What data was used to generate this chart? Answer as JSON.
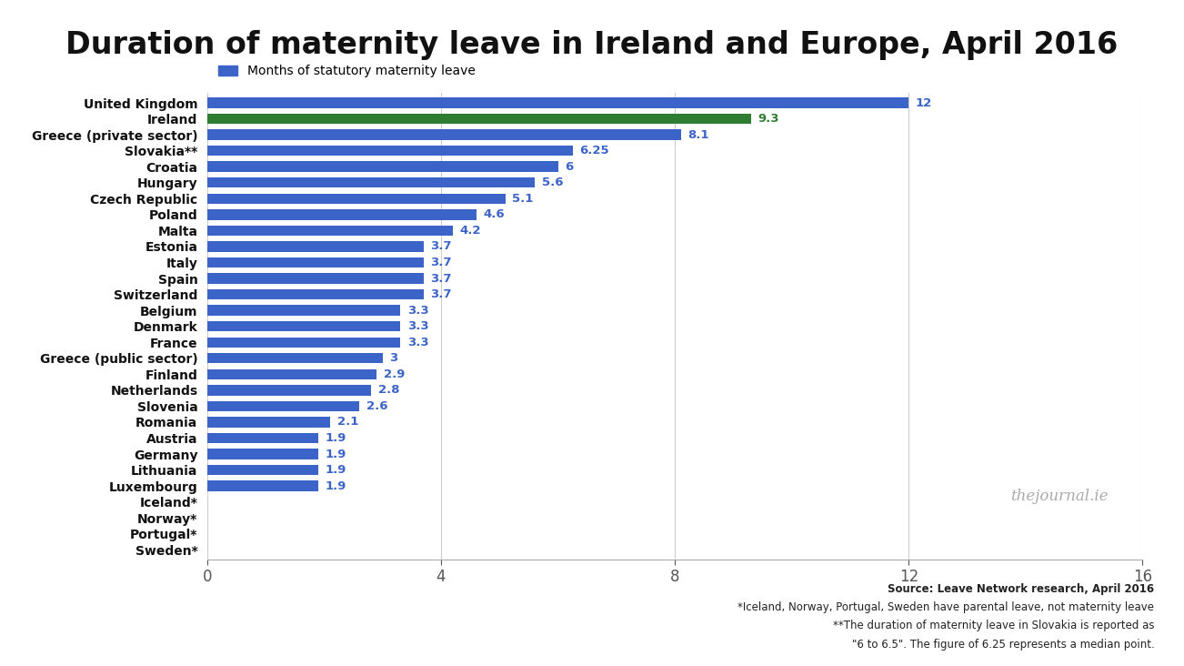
{
  "title": "Duration of maternity leave in Ireland and Europe, April 2016",
  "legend_label": "Months of statutory maternity leave",
  "countries": [
    "United Kingdom",
    "Ireland",
    "Greece (private sector)",
    "Slovakia**",
    "Croatia",
    "Hungary",
    "Czech Republic",
    "Poland",
    "Malta",
    "Estonia",
    "Italy",
    "Spain",
    "Switzerland",
    "Belgium",
    "Denmark",
    "France",
    "Greece (public sector)",
    "Finland",
    "Netherlands",
    "Slovenia",
    "Romania",
    "Austria",
    "Germany",
    "Lithuania",
    "Luxembourg",
    "Iceland*",
    "Norway*",
    "Portugal*",
    "Sweden*"
  ],
  "values": [
    12,
    9.3,
    8.1,
    6.25,
    6,
    5.6,
    5.1,
    4.6,
    4.2,
    3.7,
    3.7,
    3.7,
    3.7,
    3.3,
    3.3,
    3.3,
    3,
    2.9,
    2.8,
    2.6,
    2.1,
    1.9,
    1.9,
    1.9,
    1.9,
    0,
    0,
    0,
    0
  ],
  "bar_colors": [
    "#3C64C8",
    "#2E7D32",
    "#3C64C8",
    "#3C64C8",
    "#3C64C8",
    "#3C64C8",
    "#3C64C8",
    "#3C64C8",
    "#3C64C8",
    "#3C64C8",
    "#3C64C8",
    "#3C64C8",
    "#3C64C8",
    "#3C64C8",
    "#3C64C8",
    "#3C64C8",
    "#3C64C8",
    "#3C64C8",
    "#3C64C8",
    "#3C64C8",
    "#3C64C8",
    "#3C64C8",
    "#3C64C8",
    "#3C64C8",
    "#3C64C8",
    "#3C64C8",
    "#3C64C8",
    "#3C64C8",
    "#3C64C8"
  ],
  "label_colors": [
    "#3C64C8",
    "#2E7D32",
    "#3C64C8",
    "#3C64C8",
    "#3C64C8",
    "#3C64C8",
    "#3C64C8",
    "#3C64C8",
    "#3C64C8",
    "#3C64C8",
    "#3C64C8",
    "#3C64C8",
    "#3C64C8",
    "#3C64C8",
    "#3C64C8",
    "#3C64C8",
    "#3C64C8",
    "#3C64C8",
    "#3C64C8",
    "#3C64C8",
    "#3C64C8",
    "#3C64C8",
    "#3C64C8",
    "#3C64C8",
    "#3C64C8",
    "#3C64C8",
    "#3C64C8",
    "#3C64C8",
    "#3C64C8"
  ],
  "xlim": [
    0,
    16
  ],
  "xticks": [
    0,
    4,
    8,
    12,
    16
  ],
  "source_line1": "Source: Leave Network research, April 2016",
  "source_line2": "*Iceland, Norway, Portugal, Sweden have parental leave, not maternity leave",
  "source_line3": "**The duration of maternity leave in Slovakia is reported as",
  "source_line4": "\"6 to 6.5\". The figure of 6.25 represents a median point.",
  "watermark": "thejournal.ie",
  "background_color": "#FFFFFF",
  "title_fontsize": 24,
  "bar_height": 0.65
}
